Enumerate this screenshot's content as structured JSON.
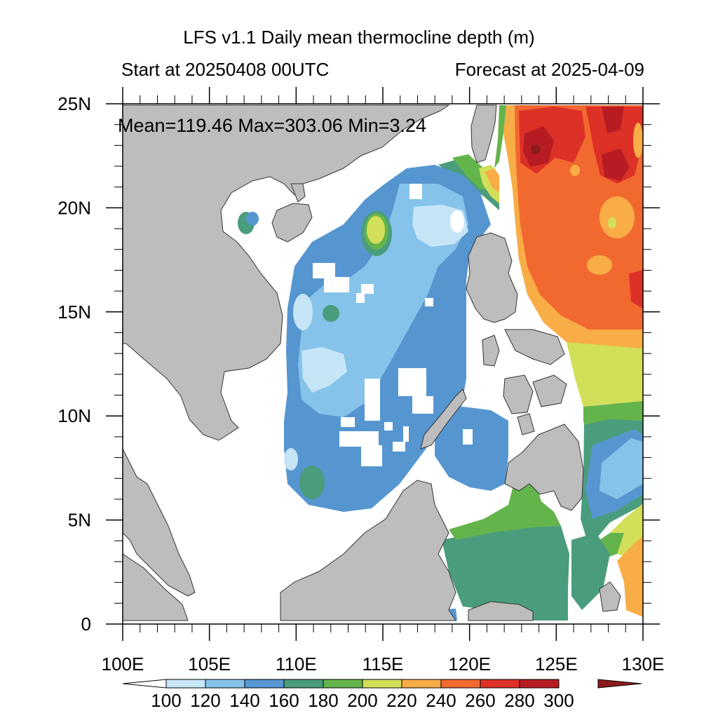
{
  "title": "LFS v1.1 Daily mean thermocline depth (m)",
  "subtitle_left": "Start at 20250408 00UTC",
  "subtitle_right": "Forecast at 2025-04-09",
  "stats": {
    "text": "Mean=119.46  Max=303.06  Min=3.24",
    "mean": 119.46,
    "max": 303.06,
    "min": 3.24
  },
  "axes": {
    "lon_ticks": [
      "100E",
      "105E",
      "110E",
      "115E",
      "120E",
      "125E",
      "130E"
    ],
    "lat_ticks": [
      "0",
      "5N",
      "10N",
      "15N",
      "20N",
      "25N"
    ],
    "lon_range": [
      100,
      130
    ],
    "lat_range": [
      0,
      25
    ]
  },
  "colorbar": {
    "labels": [
      "100",
      "120",
      "140",
      "160",
      "180",
      "200",
      "220",
      "240",
      "260",
      "280",
      "300"
    ],
    "colors": [
      "#ffffff",
      "#c6e6f8",
      "#86c3ea",
      "#5596d1",
      "#4a9d7c",
      "#64b44c",
      "#d2df58",
      "#f8ad46",
      "#f26930",
      "#dd3128",
      "#b71c22",
      "#8e1b1c"
    ]
  },
  "colors": {
    "land": "#bdbdbd",
    "ocean_missing": "#ffffff"
  }
}
